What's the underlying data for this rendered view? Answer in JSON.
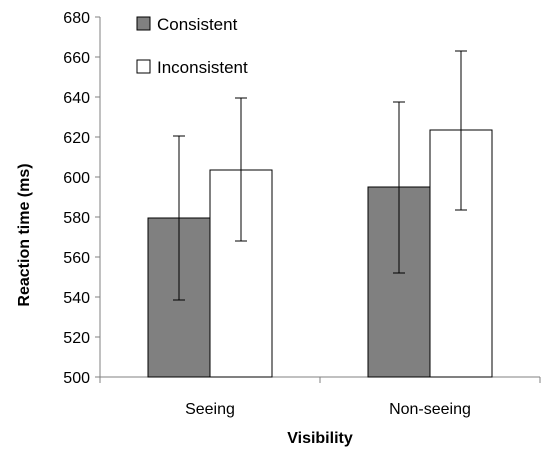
{
  "chart_data": {
    "type": "bar",
    "title": "",
    "xlabel": "Visibility",
    "ylabel": "Reaction time (ms)",
    "ylim": [
      500,
      680
    ],
    "ytick_step": 20,
    "yticks": [
      "500",
      "520",
      "540",
      "560",
      "580",
      "600",
      "620",
      "640",
      "660",
      "680"
    ],
    "categories": [
      "Seeing",
      "Non-seeing"
    ],
    "series": [
      {
        "name": "Consistent",
        "color": "#808080",
        "values": [
          579.5,
          595
        ],
        "error_low": [
          538.5,
          552
        ],
        "error_high": [
          620.5,
          637.5
        ]
      },
      {
        "name": "Inconsistent",
        "color": "#ffffff",
        "values": [
          603.5,
          623.5
        ],
        "error_low": [
          568,
          583.5
        ],
        "error_high": [
          639.5,
          663
        ]
      }
    ],
    "grid": false,
    "legend_position": "top-left"
  }
}
